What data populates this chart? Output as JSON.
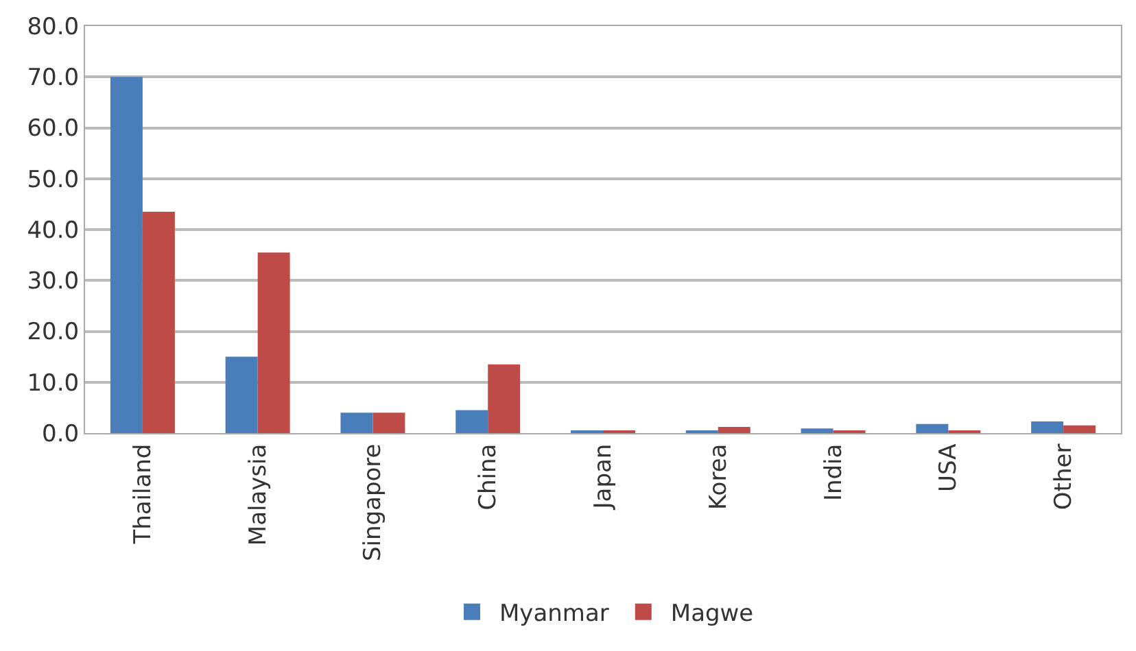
{
  "chart_data": {
    "type": "bar",
    "categories": [
      "Thailand",
      "Malaysia",
      "Singapore",
      "China",
      "Japan",
      "Korea",
      "India",
      "USA",
      "Other"
    ],
    "series": [
      {
        "name": "Myanmar",
        "color": "#4a7ebb",
        "values": [
          70.0,
          15.0,
          4.0,
          4.5,
          0.5,
          0.5,
          0.9,
          1.8,
          2.3
        ]
      },
      {
        "name": "Magwe",
        "color": "#be4b48",
        "values": [
          43.5,
          35.5,
          4.0,
          13.5,
          0.5,
          1.2,
          0.4,
          0.4,
          1.5
        ]
      }
    ],
    "ylim": [
      0,
      80
    ],
    "yticks": [
      {
        "value": 0,
        "label": "0.0"
      },
      {
        "value": 10,
        "label": "10.0"
      },
      {
        "value": 20,
        "label": "20.0"
      },
      {
        "value": 30,
        "label": "30.0"
      },
      {
        "value": 40,
        "label": "40.0"
      },
      {
        "value": 50,
        "label": "50.0"
      },
      {
        "value": 60,
        "label": "60.0"
      },
      {
        "value": 70,
        "label": "70.0"
      },
      {
        "value": 80,
        "label": "80.0"
      }
    ],
    "grid": "y",
    "legend": "bottom"
  }
}
